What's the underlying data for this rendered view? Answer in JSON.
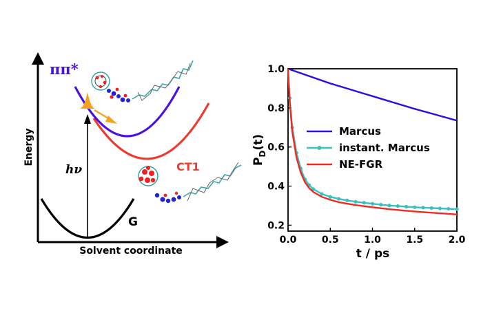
{
  "diagram": {
    "axis_energy_label": "Energy",
    "axis_solvent_label": "Solvent coordinate",
    "state_pp_label": "ππ*",
    "state_ct_label": "CT1",
    "state_g_label": "G",
    "excitation_label": "hν",
    "colors": {
      "pp": "#4a10e0",
      "ct": "#ee3a2e",
      "g": "#000000",
      "arrow": "#f7a21b"
    }
  },
  "chart_data": {
    "type": "line",
    "xlabel": "t / ps",
    "ylabel": "P_D(t)",
    "ylabel_main": "P",
    "ylabel_sub": "D",
    "ylabel_tail": "(t)",
    "xlim": [
      0,
      2.0
    ],
    "ylim": [
      0.17,
      1.0
    ],
    "x_ticks": [
      0,
      0.5,
      1.0,
      1.5,
      2.0
    ],
    "x_tick_labels": [
      "0.0",
      "0.5",
      "1.0",
      "1.5",
      "2.0"
    ],
    "y_ticks": [
      0.2,
      0.4,
      0.6,
      0.8,
      1.0
    ],
    "y_tick_labels": [
      "0.2",
      "0.4",
      "0.6",
      "0.8",
      "1.0"
    ],
    "legend_position": "center-right",
    "series": [
      {
        "name": "Marcus",
        "color": "#2b10e0",
        "marker": false,
        "x": [
          0,
          0.5,
          1.0,
          1.5,
          2.0
        ],
        "y": [
          1.0,
          0.925,
          0.86,
          0.795,
          0.735
        ]
      },
      {
        "name": "instant. Marcus",
        "color": "#3bbfbf",
        "marker": true,
        "x": [
          0,
          0.02,
          0.05,
          0.1,
          0.15,
          0.2,
          0.25,
          0.3,
          0.4,
          0.5,
          0.6,
          0.7,
          0.8,
          0.9,
          1.0,
          1.1,
          1.2,
          1.3,
          1.4,
          1.5,
          1.6,
          1.7,
          1.8,
          1.9,
          2.0
        ],
        "y": [
          1.0,
          0.85,
          0.7,
          0.57,
          0.49,
          0.435,
          0.405,
          0.385,
          0.36,
          0.345,
          0.335,
          0.327,
          0.32,
          0.315,
          0.31,
          0.305,
          0.301,
          0.298,
          0.295,
          0.292,
          0.29,
          0.288,
          0.286,
          0.284,
          0.282
        ]
      },
      {
        "name": "NE-FGR",
        "color": "#ee2a22",
        "marker": false,
        "x": [
          0,
          0.02,
          0.05,
          0.1,
          0.15,
          0.2,
          0.25,
          0.3,
          0.4,
          0.5,
          0.6,
          0.8,
          1.0,
          1.2,
          1.4,
          1.6,
          1.8,
          2.0
        ],
        "y": [
          1.0,
          0.83,
          0.68,
          0.545,
          0.47,
          0.42,
          0.39,
          0.37,
          0.345,
          0.33,
          0.318,
          0.303,
          0.292,
          0.282,
          0.274,
          0.267,
          0.261,
          0.255
        ]
      }
    ]
  }
}
